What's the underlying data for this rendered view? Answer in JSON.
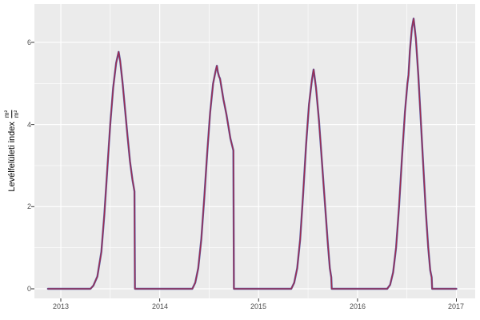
{
  "y_axis": {
    "title": "Levélfelületi index",
    "unit_numerator": "m²",
    "unit_denominator": "m²",
    "ticks": [
      "6",
      "4",
      "2",
      "0"
    ],
    "tick_values": [
      6,
      4,
      2,
      0
    ]
  },
  "x_axis": {
    "ticks": [
      "2013",
      "2014",
      "2015",
      "2016",
      "2017"
    ],
    "tick_values": [
      2013,
      2014,
      2015,
      2016,
      2017
    ]
  },
  "chart_data": {
    "type": "line",
    "title": "",
    "xlabel": "",
    "ylabel": "Levélfelületi index m²/m²",
    "x_range": [
      2012.733,
      2017.19
    ],
    "y_range": [
      -0.234,
      6.934
    ],
    "x_major_gridlines": [
      2013,
      2014,
      2015,
      2016,
      2017
    ],
    "x_minor_gridlines": [
      2013.5,
      2014.5,
      2015.5,
      2016.5
    ],
    "y_major_gridlines": [
      0,
      2,
      4,
      6
    ],
    "y_minor_gridlines": [
      1,
      3,
      5
    ],
    "grid": "on",
    "legend": "none",
    "panel_background": "#EBEBEB",
    "gridline_color": "#FFFFFF",
    "tick_color": "#333333",
    "tick_label_color": "#4D4D4D",
    "series": [
      {
        "name": "line-blue",
        "color": "#5A5FA8",
        "width": 2.4
      },
      {
        "name": "line-red",
        "color": "#A02A4C",
        "width": 1.3
      }
    ],
    "series_note": "two overlapping lines sharing the same points",
    "peaks": [
      {
        "year": 2013.585,
        "value": 5.77
      },
      {
        "year": 2014.578,
        "value": 5.43
      },
      {
        "year": 2015.556,
        "value": 5.34
      },
      {
        "year": 2016.567,
        "value": 6.58
      }
    ],
    "points": [
      [
        2012.87,
        0
      ],
      [
        2013.0,
        0
      ],
      [
        2013.3,
        0
      ],
      [
        2013.33,
        0.08
      ],
      [
        2013.37,
        0.3
      ],
      [
        2013.41,
        0.9
      ],
      [
        2013.44,
        1.8
      ],
      [
        2013.47,
        2.9
      ],
      [
        2013.5,
        4.0
      ],
      [
        2013.53,
        4.9
      ],
      [
        2013.56,
        5.5
      ],
      [
        2013.585,
        5.77
      ],
      [
        2013.6,
        5.55
      ],
      [
        2013.625,
        5.0
      ],
      [
        2013.65,
        4.35
      ],
      [
        2013.675,
        3.7
      ],
      [
        2013.7,
        3.1
      ],
      [
        2013.725,
        2.65
      ],
      [
        2013.745,
        2.37
      ],
      [
        2013.75,
        0
      ],
      [
        2014.33,
        0
      ],
      [
        2014.36,
        0.15
      ],
      [
        2014.39,
        0.5
      ],
      [
        2014.42,
        1.2
      ],
      [
        2014.45,
        2.2
      ],
      [
        2014.48,
        3.3
      ],
      [
        2014.51,
        4.3
      ],
      [
        2014.54,
        5.0
      ],
      [
        2014.565,
        5.3
      ],
      [
        2014.578,
        5.43
      ],
      [
        2014.588,
        5.28
      ],
      [
        2014.6,
        5.17
      ],
      [
        2014.61,
        5.12
      ],
      [
        2014.645,
        4.6
      ],
      [
        2014.675,
        4.24
      ],
      [
        2014.715,
        3.66
      ],
      [
        2014.745,
        3.37
      ],
      [
        2014.75,
        0
      ],
      [
        2015.33,
        0
      ],
      [
        2015.36,
        0.15
      ],
      [
        2015.39,
        0.5
      ],
      [
        2015.42,
        1.2
      ],
      [
        2015.45,
        2.3
      ],
      [
        2015.48,
        3.5
      ],
      [
        2015.51,
        4.5
      ],
      [
        2015.54,
        5.1
      ],
      [
        2015.556,
        5.34
      ],
      [
        2015.58,
        4.9
      ],
      [
        2015.61,
        4.1
      ],
      [
        2015.64,
        3.1
      ],
      [
        2015.67,
        2.1
      ],
      [
        2015.7,
        1.1
      ],
      [
        2015.72,
        0.5
      ],
      [
        2015.735,
        0.28
      ],
      [
        2015.74,
        0
      ],
      [
        2016.3,
        0
      ],
      [
        2016.33,
        0.1
      ],
      [
        2016.36,
        0.4
      ],
      [
        2016.39,
        1.0
      ],
      [
        2016.42,
        2.0
      ],
      [
        2016.45,
        3.2
      ],
      [
        2016.48,
        4.3
      ],
      [
        2016.505,
        5.0
      ],
      [
        2016.515,
        5.2
      ],
      [
        2016.53,
        5.8
      ],
      [
        2016.55,
        6.35
      ],
      [
        2016.567,
        6.58
      ],
      [
        2016.59,
        6.1
      ],
      [
        2016.615,
        5.2
      ],
      [
        2016.64,
        4.1
      ],
      [
        2016.665,
        3.0
      ],
      [
        2016.69,
        1.9
      ],
      [
        2016.715,
        1.0
      ],
      [
        2016.735,
        0.45
      ],
      [
        2016.75,
        0.28
      ],
      [
        2016.755,
        0
      ],
      [
        2017.0,
        0
      ]
    ]
  }
}
